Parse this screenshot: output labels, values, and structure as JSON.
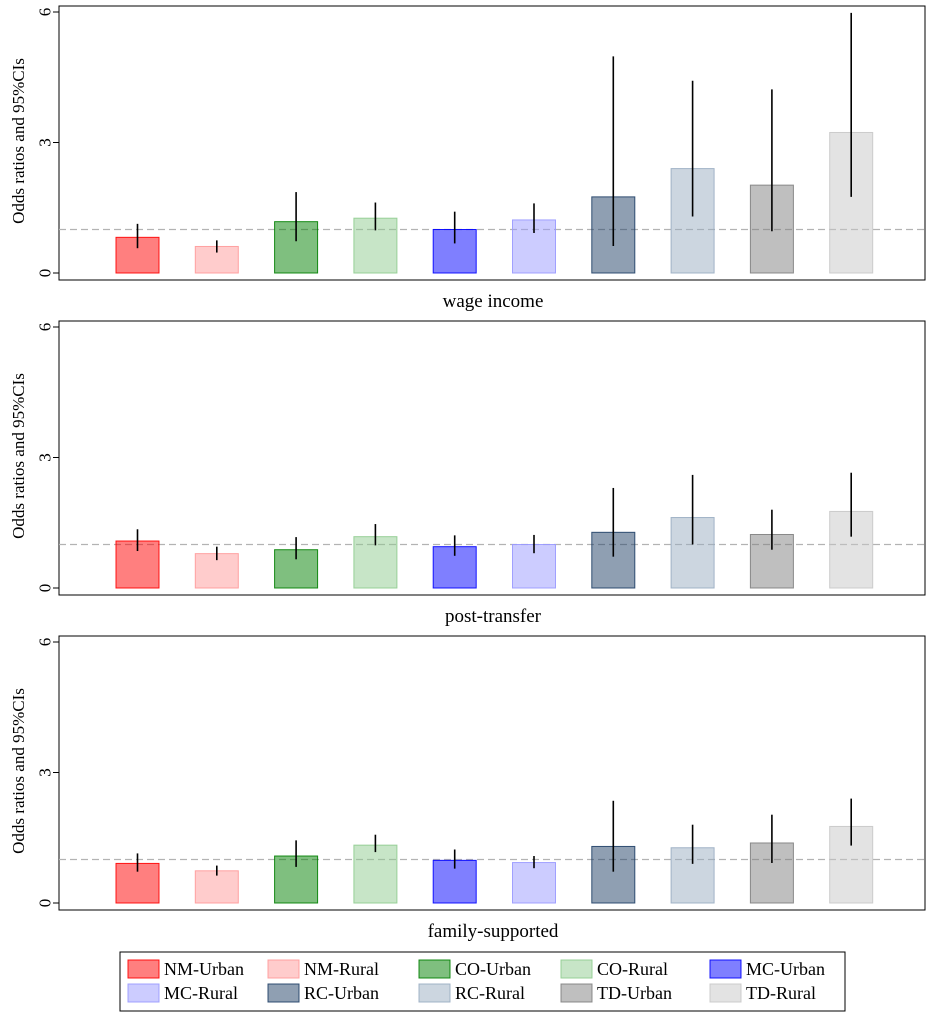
{
  "chart_data": {
    "type": "bar",
    "ylabel": "Odds ratios and 95%CIs",
    "ylim": [
      0,
      6
    ],
    "yticks": [
      0,
      3,
      6
    ],
    "reference_line": 1,
    "groups": [
      {
        "name": "NM-Urban",
        "color": "#ff0000"
      },
      {
        "name": "NM-Rural",
        "color": "#ff9999"
      },
      {
        "name": "CO-Urban",
        "color": "#008000"
      },
      {
        "name": "CO-Rural",
        "color": "#8fcc8f"
      },
      {
        "name": "MC-Urban",
        "color": "#0000ff"
      },
      {
        "name": "MC-Rural",
        "color": "#9999ff"
      },
      {
        "name": "RC-Urban",
        "color": "#1f3f66"
      },
      {
        "name": "RC-Rural",
        "color": "#99adc2"
      },
      {
        "name": "TD-Urban",
        "color": "#808080"
      },
      {
        "name": "TD-Rural",
        "color": "#c8c8c8"
      }
    ],
    "panels": [
      {
        "label": "wage income",
        "values": [
          0.82,
          0.61,
          1.18,
          1.26,
          1.0,
          1.22,
          1.75,
          2.4,
          2.02,
          3.23
        ],
        "ci_low": [
          0.57,
          0.47,
          0.73,
          0.98,
          0.68,
          0.92,
          0.62,
          1.3,
          0.96,
          1.75
        ],
        "ci_high": [
          1.13,
          0.75,
          1.86,
          1.62,
          1.41,
          1.6,
          4.98,
          4.42,
          4.22,
          5.98
        ]
      },
      {
        "label": "post-transfer",
        "values": [
          1.08,
          0.79,
          0.88,
          1.18,
          0.95,
          1.0,
          1.28,
          1.62,
          1.23,
          1.76
        ],
        "ci_low": [
          0.85,
          0.64,
          0.66,
          0.98,
          0.74,
          0.8,
          0.72,
          1.0,
          0.88,
          1.18
        ],
        "ci_high": [
          1.35,
          0.95,
          1.17,
          1.47,
          1.21,
          1.22,
          2.3,
          2.6,
          1.8,
          2.65
        ]
      },
      {
        "label": "family-supported",
        "values": [
          0.91,
          0.74,
          1.08,
          1.33,
          0.98,
          0.93,
          1.3,
          1.27,
          1.38,
          1.76
        ],
        "ci_low": [
          0.72,
          0.63,
          0.83,
          1.17,
          0.79,
          0.8,
          0.72,
          0.9,
          0.92,
          1.32
        ],
        "ci_high": [
          1.14,
          0.86,
          1.44,
          1.57,
          1.23,
          1.08,
          2.35,
          1.8,
          2.03,
          2.4
        ]
      }
    ],
    "legend": {
      "placement": "bottom",
      "columns": 5
    }
  }
}
